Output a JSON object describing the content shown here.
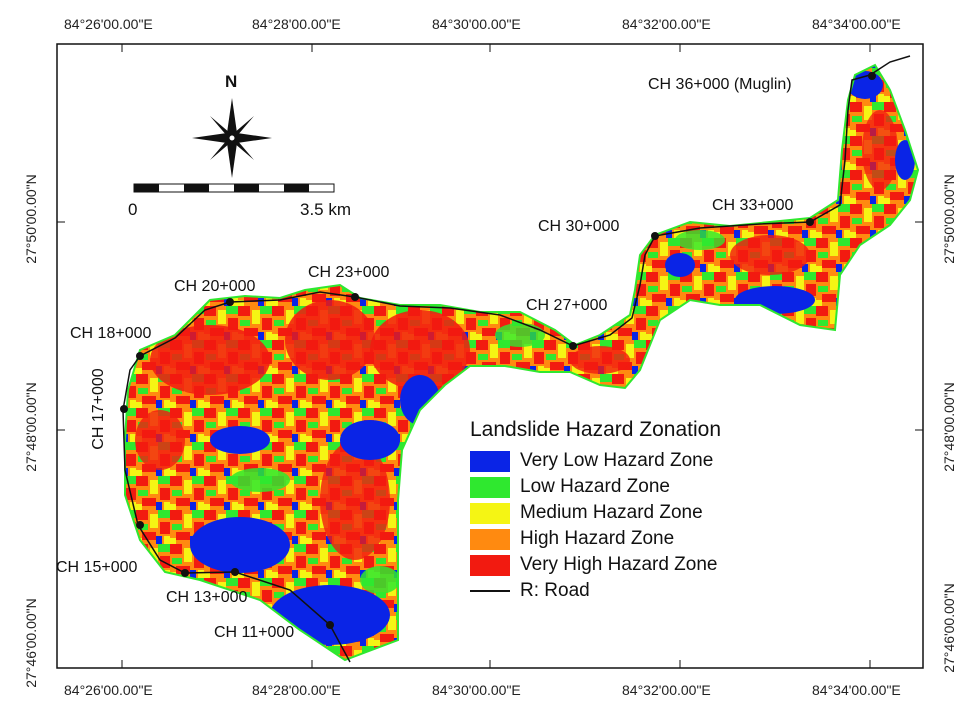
{
  "top_longitudes": [
    "84°26'00.00\"E",
    "84°28'00.00\"E",
    "84°30'00.00\"E",
    "84°32'00.00\"E",
    "84°34'00.00\"E"
  ],
  "bottom_longitudes": [
    "84°26'00.00\"E",
    "84°28'00.00\"E",
    "84°30'00.00\"E",
    "84°32'00.00\"E",
    "84°34'00.00\"E"
  ],
  "left_latitudes": [
    "27°50'00.00\"N",
    "27°48'00.00\"N",
    "27°46'00.00\"N"
  ],
  "right_latitudes": [
    "27°50'00.00\"N",
    "27°48'00.00\"N",
    "27°46'00.00\"N"
  ],
  "stations": {
    "ch36": "CH 36+000 (Muglin)",
    "ch33": "CH 33+000",
    "ch30": "CH 30+000",
    "ch27": "CH 27+000",
    "ch23": "CH 23+000",
    "ch20": "CH 20+000",
    "ch18": "CH 18+000",
    "ch17": "CH 17+000",
    "ch15": "CH 15+000",
    "ch13": "CH 13+000",
    "ch11": "CH 11+000"
  },
  "north_label": "N",
  "scale": {
    "start": "0",
    "end": "3.5 km"
  },
  "legend": {
    "title": "Landslide Hazard Zonation",
    "items": [
      {
        "label": "Very Low Hazard Zone",
        "color": "#0a24e6"
      },
      {
        "label": "Low Hazard Zone",
        "color": "#2fe82f"
      },
      {
        "label": "Medium Hazard Zone",
        "color": "#f5f514"
      },
      {
        "label": "High Hazard Zone",
        "color": "#ff8a10"
      },
      {
        "label": "Very High Hazard Zone",
        "color": "#f21a10"
      }
    ],
    "road_label": "R: Road"
  }
}
